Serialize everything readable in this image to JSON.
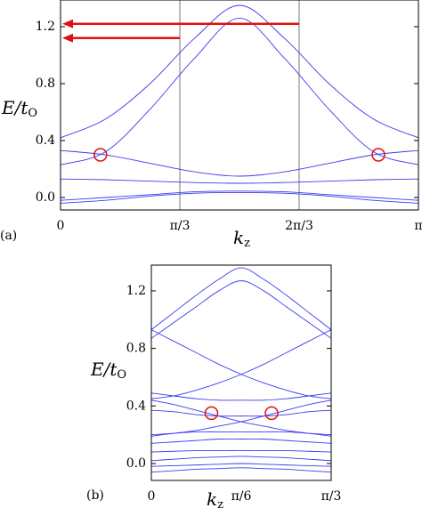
{
  "chart_data": [
    {
      "type": "line",
      "panel_label": "(a)",
      "ylabel": "E/t",
      "ylabel_sub": "O",
      "xlabel": "k",
      "xlabel_sub": "z",
      "x": [
        0,
        0.3927,
        0.7854,
        1.1781,
        1.5708,
        1.9635,
        2.3562,
        2.7489,
        3.1416
      ],
      "xlim": [
        0,
        3.1416
      ],
      "ylim": [
        -0.0875,
        1.3875
      ],
      "xgrid": true,
      "xticks": [
        0,
        {
          "value": 1.0472,
          "label": "π/3"
        },
        {
          "value": 2.0944,
          "label": "2π/3"
        },
        {
          "value": 3.1416,
          "label": "π"
        }
      ],
      "yticks": [
        {
          "value": 0,
          "label": "0.0"
        },
        0.4,
        0.8,
        1.2
      ],
      "series": [
        {
          "color": "#3a3af0",
          "values": [
            0.42,
            0.55,
            0.8,
            1.12,
            1.35,
            1.12,
            0.8,
            0.55,
            0.42
          ]
        },
        {
          "color": "#3a3af0",
          "values": [
            0.23,
            0.32,
            0.62,
            0.98,
            1.26,
            0.98,
            0.62,
            0.32,
            0.23
          ]
        },
        {
          "color": "#3a3af0",
          "values": [
            0.33,
            0.3,
            0.24,
            0.18,
            0.15,
            0.18,
            0.24,
            0.3,
            0.33
          ]
        },
        {
          "color": "#3a3af0",
          "values": [
            0.13,
            0.125,
            0.115,
            0.105,
            0.1,
            0.105,
            0.115,
            0.125,
            0.13
          ]
        },
        {
          "color": "#3a3af0",
          "values": [
            -0.04,
            -0.02,
            0.01,
            0.03,
            0.035,
            0.03,
            0.01,
            -0.02,
            -0.04
          ]
        },
        {
          "color": "#3a3af0",
          "values": [
            -0.02,
            0,
            0.02,
            0.04,
            0.045,
            0.04,
            0.02,
            0,
            -0.02
          ]
        }
      ],
      "markers": [
        {
          "x": 0.35,
          "y": 0.3,
          "color": "#e01010"
        },
        {
          "x": 2.79,
          "y": 0.3,
          "color": "#e01010"
        }
      ],
      "arrows": [
        {
          "x_from": 2.0944,
          "x_to": 0,
          "y": 1.22,
          "color": "#e01010"
        },
        {
          "x_from": 1.0472,
          "x_to": 0,
          "y": 1.12,
          "color": "#e01010"
        }
      ]
    },
    {
      "type": "line",
      "panel_label": "(b)",
      "ylabel": "E/t",
      "ylabel_sub": "O",
      "xlabel": "k",
      "xlabel_sub": "z",
      "x": [
        0,
        0.1309,
        0.2618,
        0.3927,
        0.5236,
        0.6545,
        0.7854,
        0.9163,
        1.0472
      ],
      "xlim": [
        0,
        1.0472
      ],
      "ylim": [
        -0.1175,
        1.379
      ],
      "xgrid": false,
      "xticks": [
        0,
        {
          "value": 0.5236,
          "label": "π/6"
        },
        {
          "value": 1.0472,
          "label": "π/3"
        }
      ],
      "yticks": [
        {
          "value": 0,
          "label": "0.0"
        },
        0.4,
        0.8,
        1.2
      ],
      "series": [
        {
          "color": "#3a3af0",
          "values": [
            0.93,
            1.05,
            1.17,
            1.28,
            1.36,
            1.28,
            1.17,
            1.05,
            0.93
          ]
        },
        {
          "color": "#3a3af0",
          "values": [
            0.87,
            0.98,
            1.09,
            1.2,
            1.27,
            1.2,
            1.09,
            0.98,
            0.87
          ]
        },
        {
          "color": "#3a3af0",
          "values": [
            0.93,
            0.85,
            0.77,
            0.69,
            0.62,
            0.56,
            0.51,
            0.47,
            0.45
          ]
        },
        {
          "color": "#3a3af0",
          "values": [
            0.45,
            0.47,
            0.51,
            0.56,
            0.62,
            0.69,
            0.77,
            0.85,
            0.93
          ]
        },
        {
          "color": "#3a3af0",
          "values": [
            0.49,
            0.47,
            0.45,
            0.44,
            0.44,
            0.44,
            0.45,
            0.47,
            0.49
          ]
        },
        {
          "color": "#3a3af0",
          "values": [
            0.44,
            0.41,
            0.37,
            0.33,
            0.29,
            0.26,
            0.23,
            0.21,
            0.19
          ]
        },
        {
          "color": "#3a3af0",
          "values": [
            0.19,
            0.21,
            0.23,
            0.26,
            0.29,
            0.33,
            0.37,
            0.41,
            0.44
          ]
        },
        {
          "color": "#3a3af0",
          "values": [
            0.37,
            0.36,
            0.34,
            0.33,
            0.33,
            0.33,
            0.34,
            0.36,
            0.37
          ]
        },
        {
          "color": "#3a3af0",
          "values": [
            0.2,
            0.21,
            0.22,
            0.22,
            0.22,
            0.22,
            0.22,
            0.21,
            0.2
          ]
        },
        {
          "color": "#3a3af0",
          "values": [
            0.14,
            0.15,
            0.16,
            0.17,
            0.17,
            0.17,
            0.16,
            0.15,
            0.14
          ]
        },
        {
          "color": "#3a3af0",
          "values": [
            0.08,
            0.085,
            0.09,
            0.09,
            0.09,
            0.09,
            0.09,
            0.085,
            0.08
          ]
        },
        {
          "color": "#3a3af0",
          "values": [
            0.02,
            0.03,
            0.04,
            0.045,
            0.05,
            0.045,
            0.04,
            0.03,
            0.02
          ]
        },
        {
          "color": "#3a3af0",
          "values": [
            -0.02,
            -0.015,
            -0.01,
            -0.005,
            0,
            -0.005,
            -0.01,
            -0.015,
            -0.02
          ]
        },
        {
          "color": "#3a3af0",
          "values": [
            -0.06,
            -0.05,
            -0.04,
            -0.035,
            -0.03,
            -0.035,
            -0.04,
            -0.05,
            -0.06
          ]
        }
      ],
      "markers": [
        {
          "x": 0.35,
          "y": 0.35,
          "color": "#e01010"
        },
        {
          "x": 0.7,
          "y": 0.35,
          "color": "#e01010"
        }
      ]
    }
  ]
}
